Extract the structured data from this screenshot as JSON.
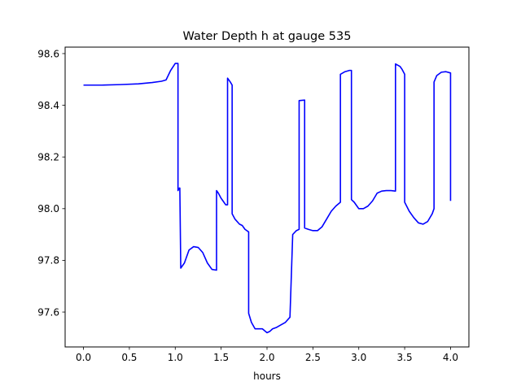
{
  "chart_data": {
    "type": "line",
    "title": "Water Depth h at gauge 535",
    "xlabel": "hours",
    "ylabel": "",
    "xlim": [
      -0.2,
      4.2
    ],
    "ylim": [
      97.465,
      98.625
    ],
    "xticks": [
      0.0,
      0.5,
      1.0,
      1.5,
      2.0,
      2.5,
      3.0,
      3.5,
      4.0
    ],
    "xtick_labels": [
      "0.0",
      "0.5",
      "1.0",
      "1.5",
      "2.0",
      "2.5",
      "3.0",
      "3.5",
      "4.0"
    ],
    "yticks": [
      97.6,
      97.8,
      98.0,
      98.2,
      98.4,
      98.6
    ],
    "ytick_labels": [
      "97.6",
      "97.8",
      "98.0",
      "98.2",
      "98.4",
      "98.6"
    ],
    "grid": false,
    "legend": "none",
    "series": [
      {
        "name": "",
        "color": "#0000ff",
        "x": [
          0.0,
          0.2,
          0.4,
          0.6,
          0.75,
          0.85,
          0.9,
          0.95,
          1.0,
          1.03,
          1.03,
          1.045,
          1.05,
          1.06,
          1.06,
          1.1,
          1.15,
          1.2,
          1.25,
          1.3,
          1.35,
          1.4,
          1.45,
          1.45,
          1.47,
          1.5,
          1.52,
          1.55,
          1.57,
          1.57,
          1.6,
          1.62,
          1.62,
          1.65,
          1.7,
          1.73,
          1.76,
          1.8,
          1.8,
          1.83,
          1.87,
          1.9,
          1.95,
          2.0,
          2.03,
          2.06,
          2.1,
          2.15,
          2.2,
          2.25,
          2.28,
          2.28,
          2.32,
          2.35,
          2.35,
          2.41,
          2.41,
          2.45,
          2.5,
          2.55,
          2.6,
          2.65,
          2.7,
          2.75,
          2.8,
          2.8,
          2.85,
          2.9,
          2.92,
          2.92,
          2.95,
          2.98,
          3.0,
          3.05,
          3.1,
          3.15,
          3.2,
          3.25,
          3.3,
          3.35,
          3.4,
          3.4,
          3.45,
          3.47,
          3.5,
          3.5,
          3.55,
          3.6,
          3.65,
          3.7,
          3.75,
          3.8,
          3.82,
          3.82,
          3.85,
          3.9,
          3.95,
          4.0,
          4.0
        ],
        "y": [
          98.478,
          98.478,
          98.48,
          98.483,
          98.488,
          98.493,
          98.498,
          98.535,
          98.562,
          98.562,
          98.07,
          98.08,
          98.08,
          97.77,
          97.77,
          97.79,
          97.84,
          97.853,
          97.85,
          97.83,
          97.79,
          97.765,
          97.762,
          98.07,
          98.06,
          98.04,
          98.03,
          98.015,
          98.015,
          98.505,
          98.49,
          98.478,
          97.98,
          97.96,
          97.94,
          97.935,
          97.92,
          97.91,
          97.595,
          97.56,
          97.535,
          97.535,
          97.535,
          97.52,
          97.525,
          97.535,
          97.54,
          97.55,
          97.56,
          97.58,
          97.9,
          97.9,
          97.915,
          97.92,
          98.418,
          98.42,
          97.925,
          97.92,
          97.915,
          97.915,
          97.93,
          97.96,
          97.99,
          98.01,
          98.025,
          98.52,
          98.53,
          98.535,
          98.535,
          98.035,
          98.025,
          98.01,
          98.0,
          98.0,
          98.01,
          98.03,
          98.06,
          98.068,
          98.07,
          98.07,
          98.068,
          98.56,
          98.55,
          98.54,
          98.52,
          98.025,
          97.99,
          97.965,
          97.945,
          97.94,
          97.95,
          97.98,
          98.0,
          98.49,
          98.515,
          98.528,
          98.53,
          98.525,
          98.03
        ]
      }
    ]
  }
}
